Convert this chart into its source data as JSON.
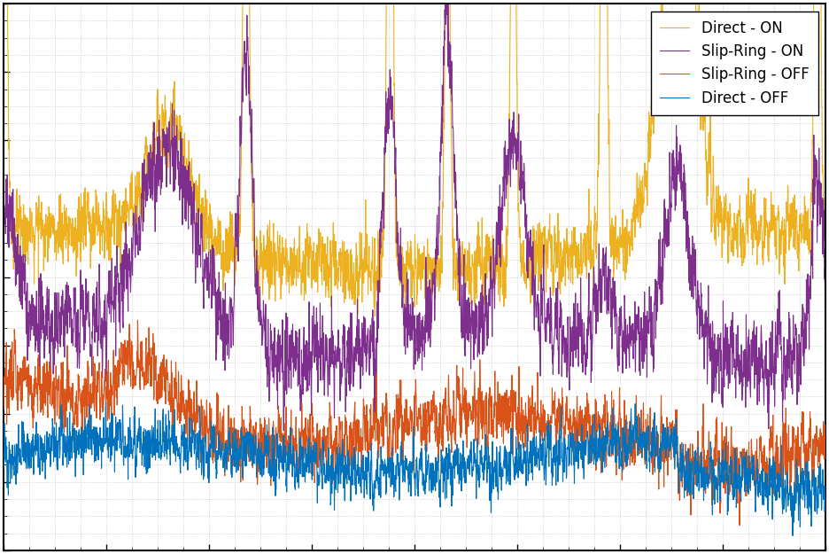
{
  "legend_entries": [
    "Direct - OFF",
    "Slip-Ring - OFF",
    "Direct - ON",
    "Slip-Ring - ON"
  ],
  "colors": [
    "#0072BD",
    "#D95319",
    "#EDB120",
    "#7E2F8E"
  ],
  "background_color": "#FFFFFF",
  "figsize": [
    9.36,
    6.25
  ],
  "dpi": 100,
  "n_points": 3000,
  "seed": 42,
  "border_color": "#000000",
  "grid_color": "#C8C8C8"
}
